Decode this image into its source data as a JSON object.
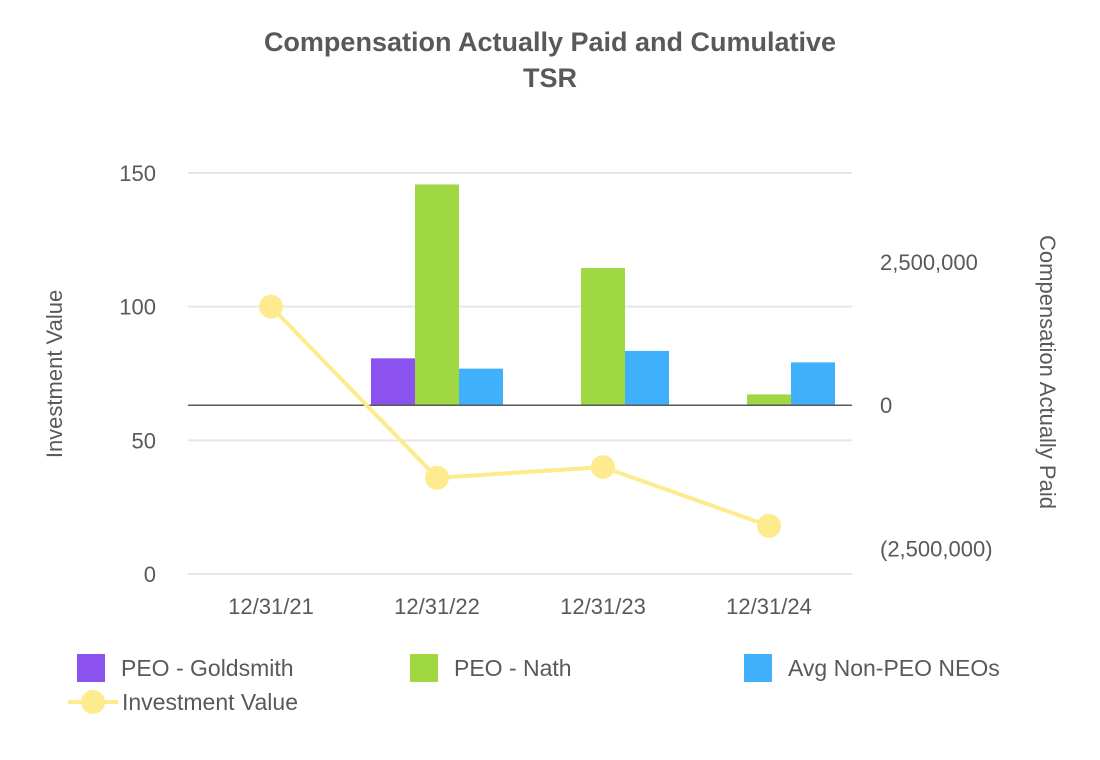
{
  "chart_data": {
    "type": "bar+line",
    "title": "Compensation Actually Paid and Cumulative TSR",
    "title_lines": [
      "Compensation Actually Paid and Cumulative",
      "TSR"
    ],
    "categories": [
      "12/31/21",
      "12/31/22",
      "12/31/23",
      "12/31/24"
    ],
    "left_axis": {
      "label": "Investment Value",
      "range": [
        0,
        150
      ],
      "ticks": [
        0,
        50,
        100,
        150
      ],
      "tick_labels": [
        "0",
        "50",
        "100",
        "150"
      ]
    },
    "right_axis": {
      "label": "Compensation Actually Paid",
      "range": [
        -2950000,
        4060000
      ],
      "ticks": [
        -2500000,
        0,
        2500000
      ],
      "tick_labels": [
        "(2,500,000)",
        "0",
        "2,500,000"
      ]
    },
    "bar_series": [
      {
        "name": "PEO - Goldsmith",
        "color": "#8c52ef",
        "values": [
          null,
          820000,
          null,
          null
        ]
      },
      {
        "name": "PEO - Nath",
        "color": "#9fd843",
        "values": [
          null,
          3860000,
          2400000,
          190000
        ]
      },
      {
        "name": "Avg Non-PEO NEOs",
        "color": "#40b0fc",
        "values": [
          null,
          640000,
          950000,
          750000
        ]
      }
    ],
    "line_series": [
      {
        "name": "Investment Value",
        "color": "#fdeb8e",
        "values": [
          100,
          36,
          40,
          18
        ]
      }
    ]
  }
}
